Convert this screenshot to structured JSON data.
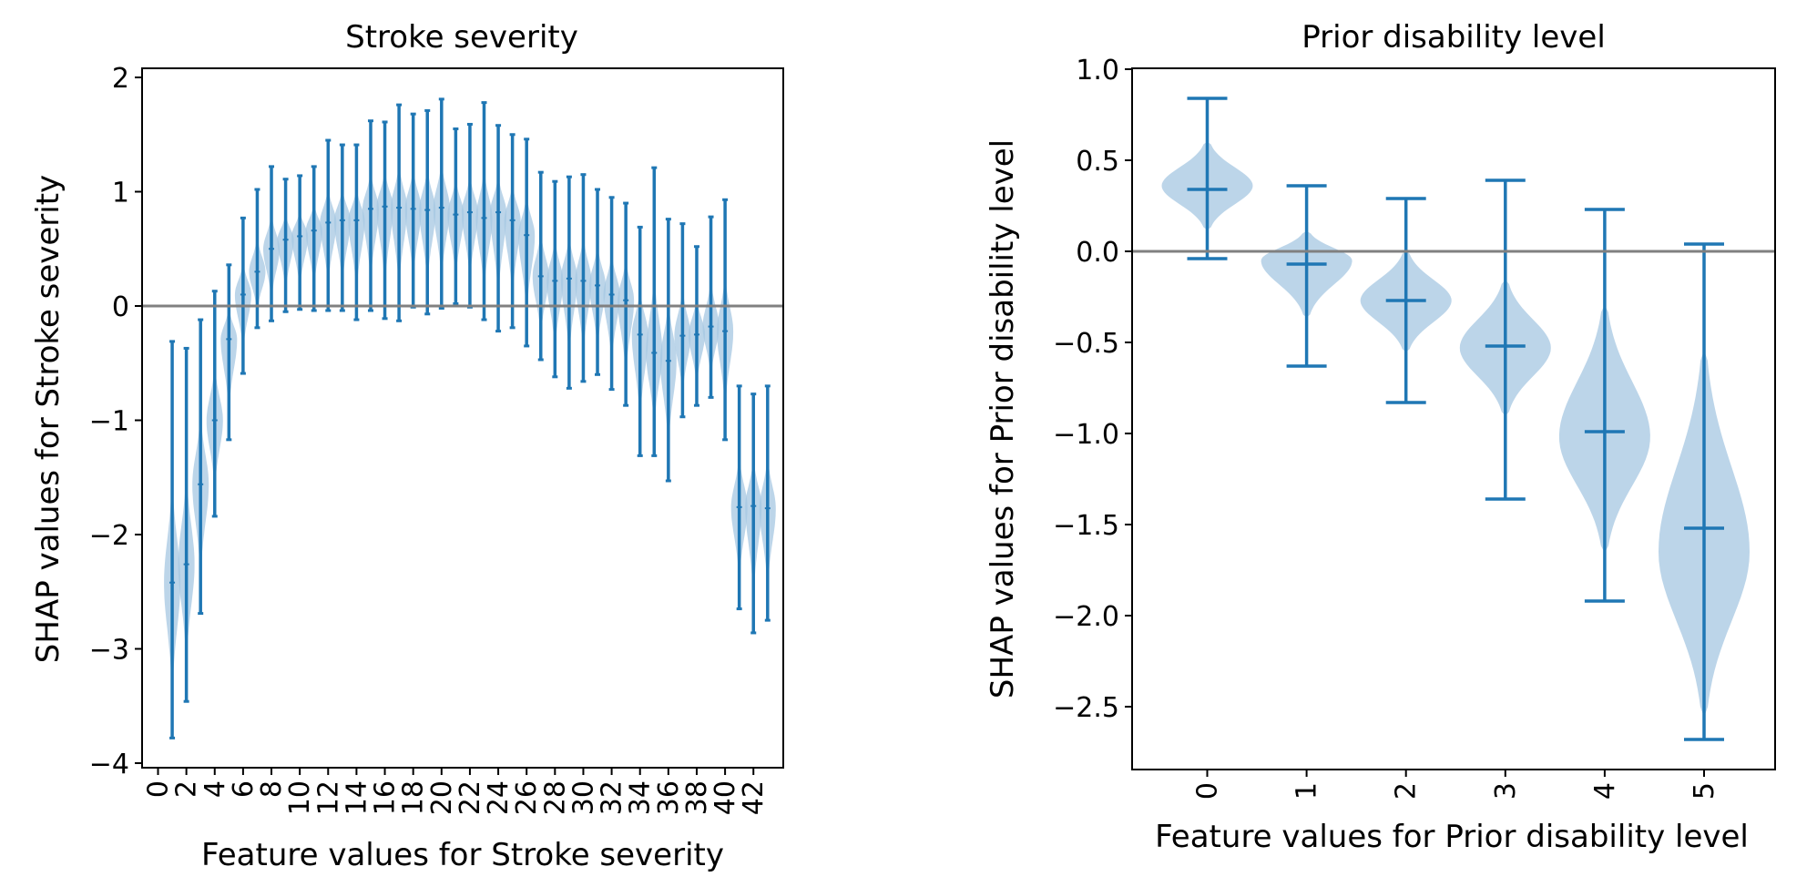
{
  "colors": {
    "violin_fill": "#a6c7e2",
    "violin_line": "#1f77b4",
    "zero_line": "#808080",
    "axis": "#000000"
  },
  "chart_data": [
    {
      "type": "violin",
      "title": "Stroke severity",
      "xlabel": "Feature values for Stroke severity",
      "ylabel": "SHAP values for Stroke severity",
      "xlim": [
        0,
        43
      ],
      "ylim": [
        -4,
        2
      ],
      "x_tick_labels": [
        "0",
        "2",
        "4",
        "6",
        "8",
        "10",
        "12",
        "14",
        "16",
        "18",
        "20",
        "22",
        "24",
        "26",
        "28",
        "30",
        "32",
        "34",
        "36",
        "38",
        "40",
        "42"
      ],
      "y_tick_labels": [
        "−4",
        "−3",
        "−2",
        "−1",
        "0",
        "1",
        "2"
      ],
      "reference_line": 0,
      "series": [
        {
          "x": 1,
          "min": -3.78,
          "median": -2.42,
          "max": -0.31
        },
        {
          "x": 2,
          "min": -3.46,
          "median": -2.26,
          "max": -0.37
        },
        {
          "x": 3,
          "min": -2.69,
          "median": -1.56,
          "max": -0.12
        },
        {
          "x": 4,
          "min": -1.84,
          "median": -1.0,
          "max": 0.13
        },
        {
          "x": 5,
          "min": -1.17,
          "median": -0.29,
          "max": 0.36
        },
        {
          "x": 6,
          "min": -0.59,
          "median": 0.1,
          "max": 0.77
        },
        {
          "x": 7,
          "min": -0.19,
          "median": 0.3,
          "max": 1.02
        },
        {
          "x": 8,
          "min": -0.13,
          "median": 0.5,
          "max": 1.22
        },
        {
          "x": 9,
          "min": -0.05,
          "median": 0.58,
          "max": 1.11
        },
        {
          "x": 10,
          "min": -0.03,
          "median": 0.61,
          "max": 1.14
        },
        {
          "x": 11,
          "min": -0.04,
          "median": 0.66,
          "max": 1.22
        },
        {
          "x": 12,
          "min": -0.04,
          "median": 0.73,
          "max": 1.45
        },
        {
          "x": 13,
          "min": -0.04,
          "median": 0.75,
          "max": 1.41
        },
        {
          "x": 14,
          "min": -0.12,
          "median": 0.75,
          "max": 1.41
        },
        {
          "x": 15,
          "min": -0.04,
          "median": 0.85,
          "max": 1.62
        },
        {
          "x": 16,
          "min": -0.11,
          "median": 0.87,
          "max": 1.61
        },
        {
          "x": 17,
          "min": -0.13,
          "median": 0.86,
          "max": 1.76
        },
        {
          "x": 18,
          "min": -0.01,
          "median": 0.85,
          "max": 1.68
        },
        {
          "x": 19,
          "min": -0.07,
          "median": 0.84,
          "max": 1.71
        },
        {
          "x": 20,
          "min": -0.02,
          "median": 0.86,
          "max": 1.81
        },
        {
          "x": 21,
          "min": 0.02,
          "median": 0.8,
          "max": 1.55
        },
        {
          "x": 22,
          "min": -0.01,
          "median": 0.82,
          "max": 1.59
        },
        {
          "x": 23,
          "min": -0.12,
          "median": 0.77,
          "max": 1.78
        },
        {
          "x": 24,
          "min": -0.22,
          "median": 0.82,
          "max": 1.58
        },
        {
          "x": 25,
          "min": -0.19,
          "median": 0.75,
          "max": 1.5
        },
        {
          "x": 26,
          "min": -0.35,
          "median": 0.62,
          "max": 1.46
        },
        {
          "x": 27,
          "min": -0.47,
          "median": 0.26,
          "max": 1.17
        },
        {
          "x": 28,
          "min": -0.62,
          "median": 0.22,
          "max": 1.09
        },
        {
          "x": 29,
          "min": -0.72,
          "median": 0.24,
          "max": 1.13
        },
        {
          "x": 30,
          "min": -0.66,
          "median": 0.22,
          "max": 1.15
        },
        {
          "x": 31,
          "min": -0.6,
          "median": 0.18,
          "max": 1.02
        },
        {
          "x": 32,
          "min": -0.73,
          "median": 0.1,
          "max": 0.95
        },
        {
          "x": 33,
          "min": -0.87,
          "median": 0.05,
          "max": 0.9
        },
        {
          "x": 34,
          "min": -1.31,
          "median": -0.25,
          "max": 0.69
        },
        {
          "x": 35,
          "min": -1.31,
          "median": -0.41,
          "max": 1.21
        },
        {
          "x": 36,
          "min": -1.53,
          "median": -0.48,
          "max": 0.76
        },
        {
          "x": 37,
          "min": -0.97,
          "median": -0.26,
          "max": 0.72
        },
        {
          "x": 38,
          "min": -0.87,
          "median": -0.25,
          "max": 0.52
        },
        {
          "x": 39,
          "min": -0.8,
          "median": -0.18,
          "max": 0.78
        },
        {
          "x": 40,
          "min": -1.17,
          "median": -0.22,
          "max": 0.93
        },
        {
          "x": 41,
          "min": -2.65,
          "median": -1.76,
          "max": -0.7
        },
        {
          "x": 42,
          "min": -2.86,
          "median": -1.75,
          "max": -0.77
        },
        {
          "x": 43,
          "min": -2.75,
          "median": -1.77,
          "max": -0.7
        }
      ]
    },
    {
      "type": "violin",
      "title": "Prior disability level",
      "xlabel": "Feature values for Prior disability level",
      "ylabel": "SHAP values for Prior disability level",
      "xlim": [
        0,
        5
      ],
      "ylim": [
        -2.85,
        1.0
      ],
      "x_tick_labels": [
        "0",
        "1",
        "2",
        "3",
        "4",
        "5"
      ],
      "y_tick_labels": [
        "1.0",
        "0.5",
        "0.0",
        "−0.5",
        "−1.0",
        "−1.5",
        "−2.0",
        "−2.5"
      ],
      "reference_line": 0,
      "series": [
        {
          "x": 0,
          "min": -0.04,
          "median": 0.34,
          "max": 0.84,
          "body_low": 0.12,
          "body_high": 0.6,
          "peak": 0.36
        },
        {
          "x": 1,
          "min": -0.63,
          "median": -0.07,
          "max": 0.36,
          "body_low": -0.36,
          "body_high": 0.11,
          "peak": -0.05
        },
        {
          "x": 2,
          "min": -0.83,
          "median": -0.27,
          "max": 0.29,
          "body_low": -0.55,
          "body_high": 0.0,
          "peak": -0.27
        },
        {
          "x": 3,
          "min": -1.36,
          "median": -0.52,
          "max": 0.39,
          "body_low": -0.9,
          "body_high": -0.16,
          "peak": -0.53
        },
        {
          "x": 4,
          "min": -1.92,
          "median": -0.99,
          "max": 0.23,
          "body_low": -1.65,
          "body_high": -0.3,
          "peak": -1.02
        },
        {
          "x": 5,
          "min": -2.68,
          "median": -1.52,
          "max": 0.04,
          "body_low": -2.55,
          "body_high": -0.55,
          "peak": -1.65
        }
      ]
    }
  ]
}
